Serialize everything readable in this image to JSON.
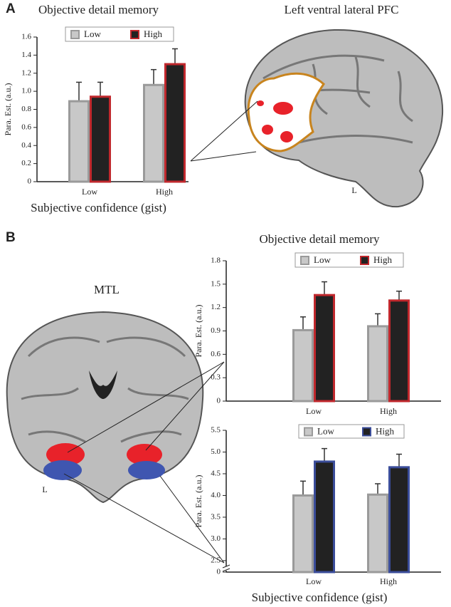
{
  "panel_labels": [
    "A",
    "B"
  ],
  "image_titles": [
    "Left ventral lateral PFC",
    "MTL"
  ],
  "hemisphere_labels": [
    "L",
    "L"
  ],
  "chart_data": [
    {
      "type": "bar",
      "title": "Objective detail memory",
      "xlabel": "Subjective confidence (gist)",
      "ylabel": "Para. Est. (a.u.)",
      "categories": [
        "Low",
        "High"
      ],
      "legend": "top",
      "series": [
        {
          "name": "Low",
          "color": "#c8c8c8",
          "edgecolor": "#9a9a9a",
          "values": [
            0.89,
            1.07
          ],
          "errors": [
            0.21,
            0.17
          ]
        },
        {
          "name": "High",
          "color": "#222222",
          "edgecolor": "#c0282d",
          "values": [
            0.94,
            1.3
          ],
          "errors": [
            0.16,
            0.17
          ]
        }
      ],
      "ylim": [
        0,
        1.6
      ],
      "yticks": [
        0,
        0.2,
        0.4,
        0.6,
        0.8,
        {
          "value": 1,
          "label": "1.0"
        },
        1.2,
        1.4,
        1.6
      ]
    },
    {
      "type": "bar",
      "title": "Objective detail memory",
      "ylabel": "Para. Est. (a.u.)",
      "categories": [
        "Low",
        "High"
      ],
      "legend": "top",
      "series": [
        {
          "name": "Low",
          "color": "#c8c8c8",
          "edgecolor": "#9a9a9a",
          "values": [
            0.91,
            0.96
          ],
          "errors": [
            0.17,
            0.16
          ]
        },
        {
          "name": "High",
          "color": "#222222",
          "edgecolor": "#c0282d",
          "values": [
            1.36,
            1.29
          ],
          "errors": [
            0.17,
            0.12
          ]
        }
      ],
      "ylim": [
        0,
        1.8
      ],
      "yticks": [
        0,
        0.3,
        0.6,
        0.9,
        1.2,
        1.5,
        1.8
      ]
    },
    {
      "type": "bar",
      "xlabel": "Subjective confidence (gist)",
      "ylabel": "Para. Est. (a.u.)",
      "categories": [
        "Low",
        "High"
      ],
      "legend": "top",
      "series": [
        {
          "name": "Low",
          "color": "#c8c8c8",
          "edgecolor": "#9a9a9a",
          "values": [
            4.0,
            4.02
          ],
          "errors": [
            0.33,
            0.25
          ]
        },
        {
          "name": "High",
          "color": "#222222",
          "edgecolor": "#3b4d9a",
          "values": [
            4.78,
            4.65
          ],
          "errors": [
            0.3,
            0.3
          ]
        }
      ],
      "ylim": [
        0,
        5.5
      ],
      "axis_break": [
        0,
        2.4
      ],
      "yticks": [
        0,
        2.5,
        {
          "value": 3,
          "label": "3.0"
        },
        3.5,
        {
          "value": 4,
          "label": "4.0"
        },
        4.5,
        {
          "value": 5,
          "label": "5.0"
        },
        5.5
      ]
    }
  ]
}
